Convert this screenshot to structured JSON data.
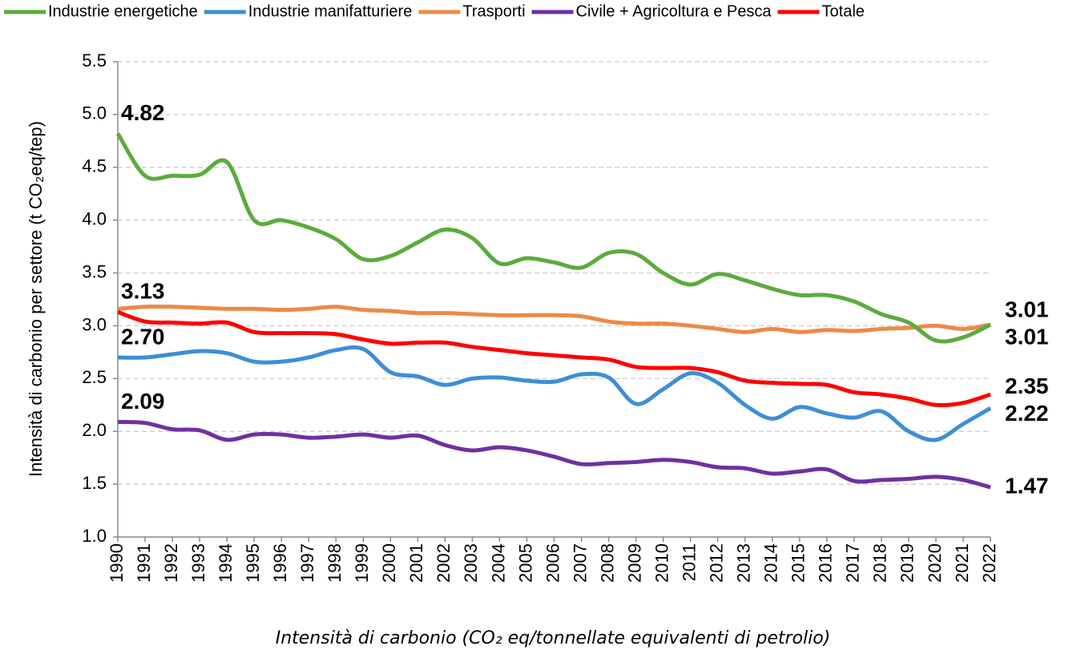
{
  "chart_data": {
    "type": "line",
    "smooth": true,
    "grid": true,
    "legend": "top",
    "y_label": "Intensità di carbonio per settore (t CO₂eq/tep)",
    "caption": "Intensità di carbonio (CO₂ eq/tonnellate equivalenti di petrolio)",
    "categories": [
      "1990",
      "1991",
      "1992",
      "1993",
      "1994",
      "1995",
      "1996",
      "1997",
      "1998",
      "1999",
      "2000",
      "2001",
      "2002",
      "2003",
      "2004",
      "2005",
      "2006",
      "2007",
      "2008",
      "2009",
      "2010",
      "2011",
      "2012",
      "2013",
      "2014",
      "2015",
      "2016",
      "2017",
      "2018",
      "2019",
      "2020",
      "2021",
      "2022"
    ],
    "ylim": [
      1.0,
      5.5
    ],
    "yticks": [
      {
        "value": 1.0,
        "label": "1.0"
      },
      1.5,
      {
        "value": 2.0,
        "label": "2.0"
      },
      2.5,
      {
        "value": 3.0,
        "label": "3.0"
      },
      3.5,
      {
        "value": 4.0,
        "label": "4.0"
      },
      4.5,
      {
        "value": 5.0,
        "label": "5.0"
      },
      5.5
    ],
    "series": [
      {
        "name": "Industrie energetiche",
        "color": "#5aac3c",
        "values": [
          4.82,
          4.42,
          4.42,
          4.43,
          4.55,
          4.0,
          4.0,
          3.93,
          3.82,
          3.63,
          3.66,
          3.79,
          3.91,
          3.83,
          3.59,
          3.64,
          3.6,
          3.55,
          3.69,
          3.68,
          3.5,
          3.39,
          3.49,
          3.43,
          3.35,
          3.29,
          3.29,
          3.23,
          3.11,
          3.03,
          2.86,
          2.89,
          3.01
        ],
        "value_labels": [
          "4.82",
          null,
          null,
          null,
          null,
          null,
          null,
          null,
          null,
          null,
          null,
          null,
          null,
          null,
          null,
          null,
          null,
          null,
          null,
          null,
          null,
          null,
          null,
          null,
          null,
          null,
          null,
          null,
          null,
          null,
          null,
          null,
          "3.01"
        ],
        "value_label_colors": [
          "#8c8c1e",
          null,
          null,
          null,
          null,
          null,
          null,
          null,
          null,
          null,
          null,
          null,
          null,
          null,
          null,
          null,
          null,
          null,
          null,
          null,
          null,
          null,
          null,
          null,
          null,
          null,
          null,
          null,
          null,
          null,
          null,
          null,
          "#5aac3c"
        ]
      },
      {
        "name": "Industrie manifatturiere",
        "color": "#3d8ed8",
        "values": [
          2.7,
          2.7,
          2.73,
          2.76,
          2.74,
          2.66,
          2.66,
          2.7,
          2.77,
          2.78,
          2.56,
          2.52,
          2.44,
          2.5,
          2.51,
          2.48,
          2.47,
          2.54,
          2.51,
          2.26,
          2.4,
          2.55,
          2.46,
          2.25,
          2.12,
          2.23,
          2.17,
          2.13,
          2.19,
          2.0,
          1.92,
          2.07,
          2.22
        ],
        "value_labels": [
          "2.70",
          null,
          null,
          null,
          null,
          null,
          null,
          null,
          null,
          null,
          null,
          null,
          null,
          null,
          null,
          null,
          null,
          null,
          null,
          null,
          null,
          null,
          null,
          null,
          null,
          null,
          null,
          null,
          null,
          null,
          null,
          null,
          "2.22"
        ],
        "value_label_colors": [
          "#1f6a8a",
          null,
          null,
          null,
          null,
          null,
          null,
          null,
          null,
          null,
          null,
          null,
          null,
          null,
          null,
          null,
          null,
          null,
          null,
          null,
          null,
          null,
          null,
          null,
          null,
          null,
          null,
          null,
          null,
          null,
          null,
          null,
          "#1f6a8a"
        ]
      },
      {
        "name": "Trasporti",
        "color": "#ec8a45",
        "values": [
          3.16,
          3.18,
          3.18,
          3.17,
          3.16,
          3.16,
          3.15,
          3.16,
          3.18,
          3.15,
          3.14,
          3.12,
          3.12,
          3.11,
          3.1,
          3.1,
          3.1,
          3.09,
          3.04,
          3.02,
          3.02,
          3.0,
          2.97,
          2.94,
          2.97,
          2.94,
          2.96,
          2.95,
          2.97,
          2.98,
          3.0,
          2.97,
          3.01
        ],
        "value_labels": [
          null,
          null,
          null,
          null,
          null,
          null,
          null,
          null,
          null,
          null,
          null,
          null,
          null,
          null,
          null,
          null,
          null,
          null,
          null,
          null,
          null,
          null,
          null,
          null,
          null,
          null,
          null,
          null,
          null,
          null,
          null,
          null,
          "3.01"
        ],
        "value_label_colors": [
          null,
          null,
          null,
          null,
          null,
          null,
          null,
          null,
          null,
          null,
          null,
          null,
          null,
          null,
          null,
          null,
          null,
          null,
          null,
          null,
          null,
          null,
          null,
          null,
          null,
          null,
          null,
          null,
          null,
          null,
          null,
          null,
          "#1f4d1f"
        ]
      },
      {
        "name": "Civile + Agricoltura e Pesca",
        "color": "#7030a0",
        "values": [
          2.09,
          2.08,
          2.02,
          2.01,
          1.92,
          1.97,
          1.97,
          1.94,
          1.95,
          1.97,
          1.94,
          1.96,
          1.87,
          1.82,
          1.85,
          1.82,
          1.76,
          1.69,
          1.7,
          1.71,
          1.73,
          1.71,
          1.66,
          1.65,
          1.6,
          1.62,
          1.64,
          1.53,
          1.54,
          1.55,
          1.57,
          1.54,
          1.47
        ],
        "value_labels": [
          "2.09",
          null,
          null,
          null,
          null,
          null,
          null,
          null,
          null,
          null,
          null,
          null,
          null,
          null,
          null,
          null,
          null,
          null,
          null,
          null,
          null,
          null,
          null,
          null,
          null,
          null,
          null,
          null,
          null,
          null,
          null,
          null,
          "1.47"
        ],
        "value_label_colors": [
          "#7030a0",
          null,
          null,
          null,
          null,
          null,
          null,
          null,
          null,
          null,
          null,
          null,
          null,
          null,
          null,
          null,
          null,
          null,
          null,
          null,
          null,
          null,
          null,
          null,
          null,
          null,
          null,
          null,
          null,
          null,
          null,
          null,
          "#7030a0"
        ]
      },
      {
        "name": "Totale",
        "color": "#ff0000",
        "values": [
          3.13,
          3.04,
          3.03,
          3.02,
          3.03,
          2.94,
          2.93,
          2.93,
          2.92,
          2.87,
          2.83,
          2.84,
          2.84,
          2.8,
          2.77,
          2.74,
          2.72,
          2.7,
          2.68,
          2.61,
          2.6,
          2.6,
          2.56,
          2.48,
          2.46,
          2.45,
          2.44,
          2.37,
          2.35,
          2.31,
          2.25,
          2.27,
          2.35
        ],
        "value_labels": [
          "3.13",
          null,
          null,
          null,
          null,
          null,
          null,
          null,
          null,
          null,
          null,
          null,
          null,
          null,
          null,
          null,
          null,
          null,
          null,
          null,
          null,
          null,
          null,
          null,
          null,
          null,
          null,
          null,
          null,
          null,
          null,
          null,
          "2.35"
        ],
        "value_label_colors": [
          "#c00000",
          null,
          null,
          null,
          null,
          null,
          null,
          null,
          null,
          null,
          null,
          null,
          null,
          null,
          null,
          null,
          null,
          null,
          null,
          null,
          null,
          null,
          null,
          null,
          null,
          null,
          null,
          null,
          null,
          null,
          null,
          null,
          "#c00000"
        ]
      }
    ]
  }
}
